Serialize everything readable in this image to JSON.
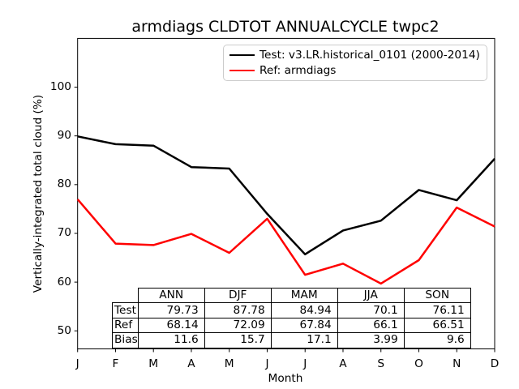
{
  "chart_data": {
    "type": "line",
    "title": "armdiags CLDTOT ANNUALCYCLE twpc2",
    "xlabel": "Month",
    "ylabel": "Vertically-integrated total cloud (%)",
    "x_tick_labels": [
      "J",
      "F",
      "M",
      "A",
      "M",
      "J",
      "J",
      "A",
      "S",
      "O",
      "N",
      "D"
    ],
    "y_ticks": [
      50,
      60,
      70,
      80,
      90,
      100
    ],
    "ylim": [
      46.3,
      110
    ],
    "grid": false,
    "legend_position": "upper right",
    "legend_border_color": "#cccccc",
    "axes_color": "#000000",
    "series": [
      {
        "name": "Test: v3.LR.historical_0101 (2000-2014)",
        "color": "#000000",
        "values": [
          89.9,
          88.3,
          88.0,
          83.6,
          83.3,
          74.0,
          65.7,
          70.6,
          72.6,
          78.9,
          76.8,
          85.3
        ]
      },
      {
        "name": "Ref: armdiags",
        "color": "#ff0000",
        "values": [
          77.0,
          67.9,
          67.6,
          69.9,
          66.0,
          73.0,
          61.5,
          63.8,
          59.7,
          64.5,
          75.3,
          71.4
        ]
      }
    ],
    "table": {
      "column_headers": [
        "ANN",
        "DJF",
        "MAM",
        "JJA",
        "SON"
      ],
      "rows": [
        {
          "label": "Test",
          "values": [
            "79.73",
            "87.78",
            "84.94",
            "70.1",
            "76.11"
          ]
        },
        {
          "label": "Ref",
          "values": [
            "68.14",
            "72.09",
            "67.84",
            "66.1",
            "66.51"
          ]
        },
        {
          "label": "Bias",
          "values": [
            "11.6",
            "15.7",
            "17.1",
            "3.99",
            "9.6"
          ]
        }
      ]
    }
  }
}
